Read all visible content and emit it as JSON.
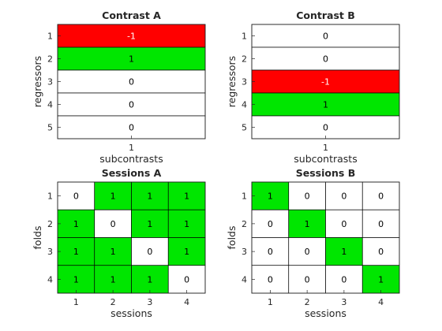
{
  "colors": {
    "negative": "#ff0000",
    "positive": "#00e600",
    "zero": "#ffffff",
    "text_on_red": "#ffffff",
    "text_default": "#000000"
  },
  "chart_data": [
    {
      "type": "heatmap",
      "title": "Contrast A",
      "xlabel": "subcontrasts",
      "ylabel": "regressors",
      "x_ticks": [
        "1"
      ],
      "y_ticks": [
        "1",
        "2",
        "3",
        "4",
        "5"
      ],
      "values": [
        [
          -1
        ],
        [
          1
        ],
        [
          0
        ],
        [
          0
        ],
        [
          0
        ]
      ],
      "color_map": {
        "-1": "red",
        "1": "green",
        "0": "white"
      },
      "grid": true
    },
    {
      "type": "heatmap",
      "title": "Contrast B",
      "xlabel": "subcontrasts",
      "ylabel": "regressors",
      "x_ticks": [
        "1"
      ],
      "y_ticks": [
        "1",
        "2",
        "3",
        "4",
        "5"
      ],
      "values": [
        [
          0
        ],
        [
          0
        ],
        [
          -1
        ],
        [
          1
        ],
        [
          0
        ]
      ],
      "color_map": {
        "-1": "red",
        "1": "green",
        "0": "white"
      },
      "grid": true
    },
    {
      "type": "heatmap",
      "title": "Sessions A",
      "xlabel": "sessions",
      "ylabel": "folds",
      "x_ticks": [
        "1",
        "2",
        "3",
        "4"
      ],
      "y_ticks": [
        "1",
        "2",
        "3",
        "4"
      ],
      "values": [
        [
          0,
          1,
          1,
          1
        ],
        [
          1,
          0,
          1,
          1
        ],
        [
          1,
          1,
          0,
          1
        ],
        [
          1,
          1,
          1,
          0
        ]
      ],
      "color_map": {
        "1": "green",
        "0": "white"
      },
      "grid": true
    },
    {
      "type": "heatmap",
      "title": "Sessions B",
      "xlabel": "sessions",
      "ylabel": "folds",
      "x_ticks": [
        "1",
        "2",
        "3",
        "4"
      ],
      "y_ticks": [
        "1",
        "2",
        "3",
        "4"
      ],
      "values": [
        [
          1,
          0,
          0,
          0
        ],
        [
          0,
          1,
          0,
          0
        ],
        [
          0,
          0,
          1,
          0
        ],
        [
          0,
          0,
          0,
          1
        ]
      ],
      "color_map": {
        "1": "green",
        "0": "white"
      },
      "grid": true
    }
  ]
}
